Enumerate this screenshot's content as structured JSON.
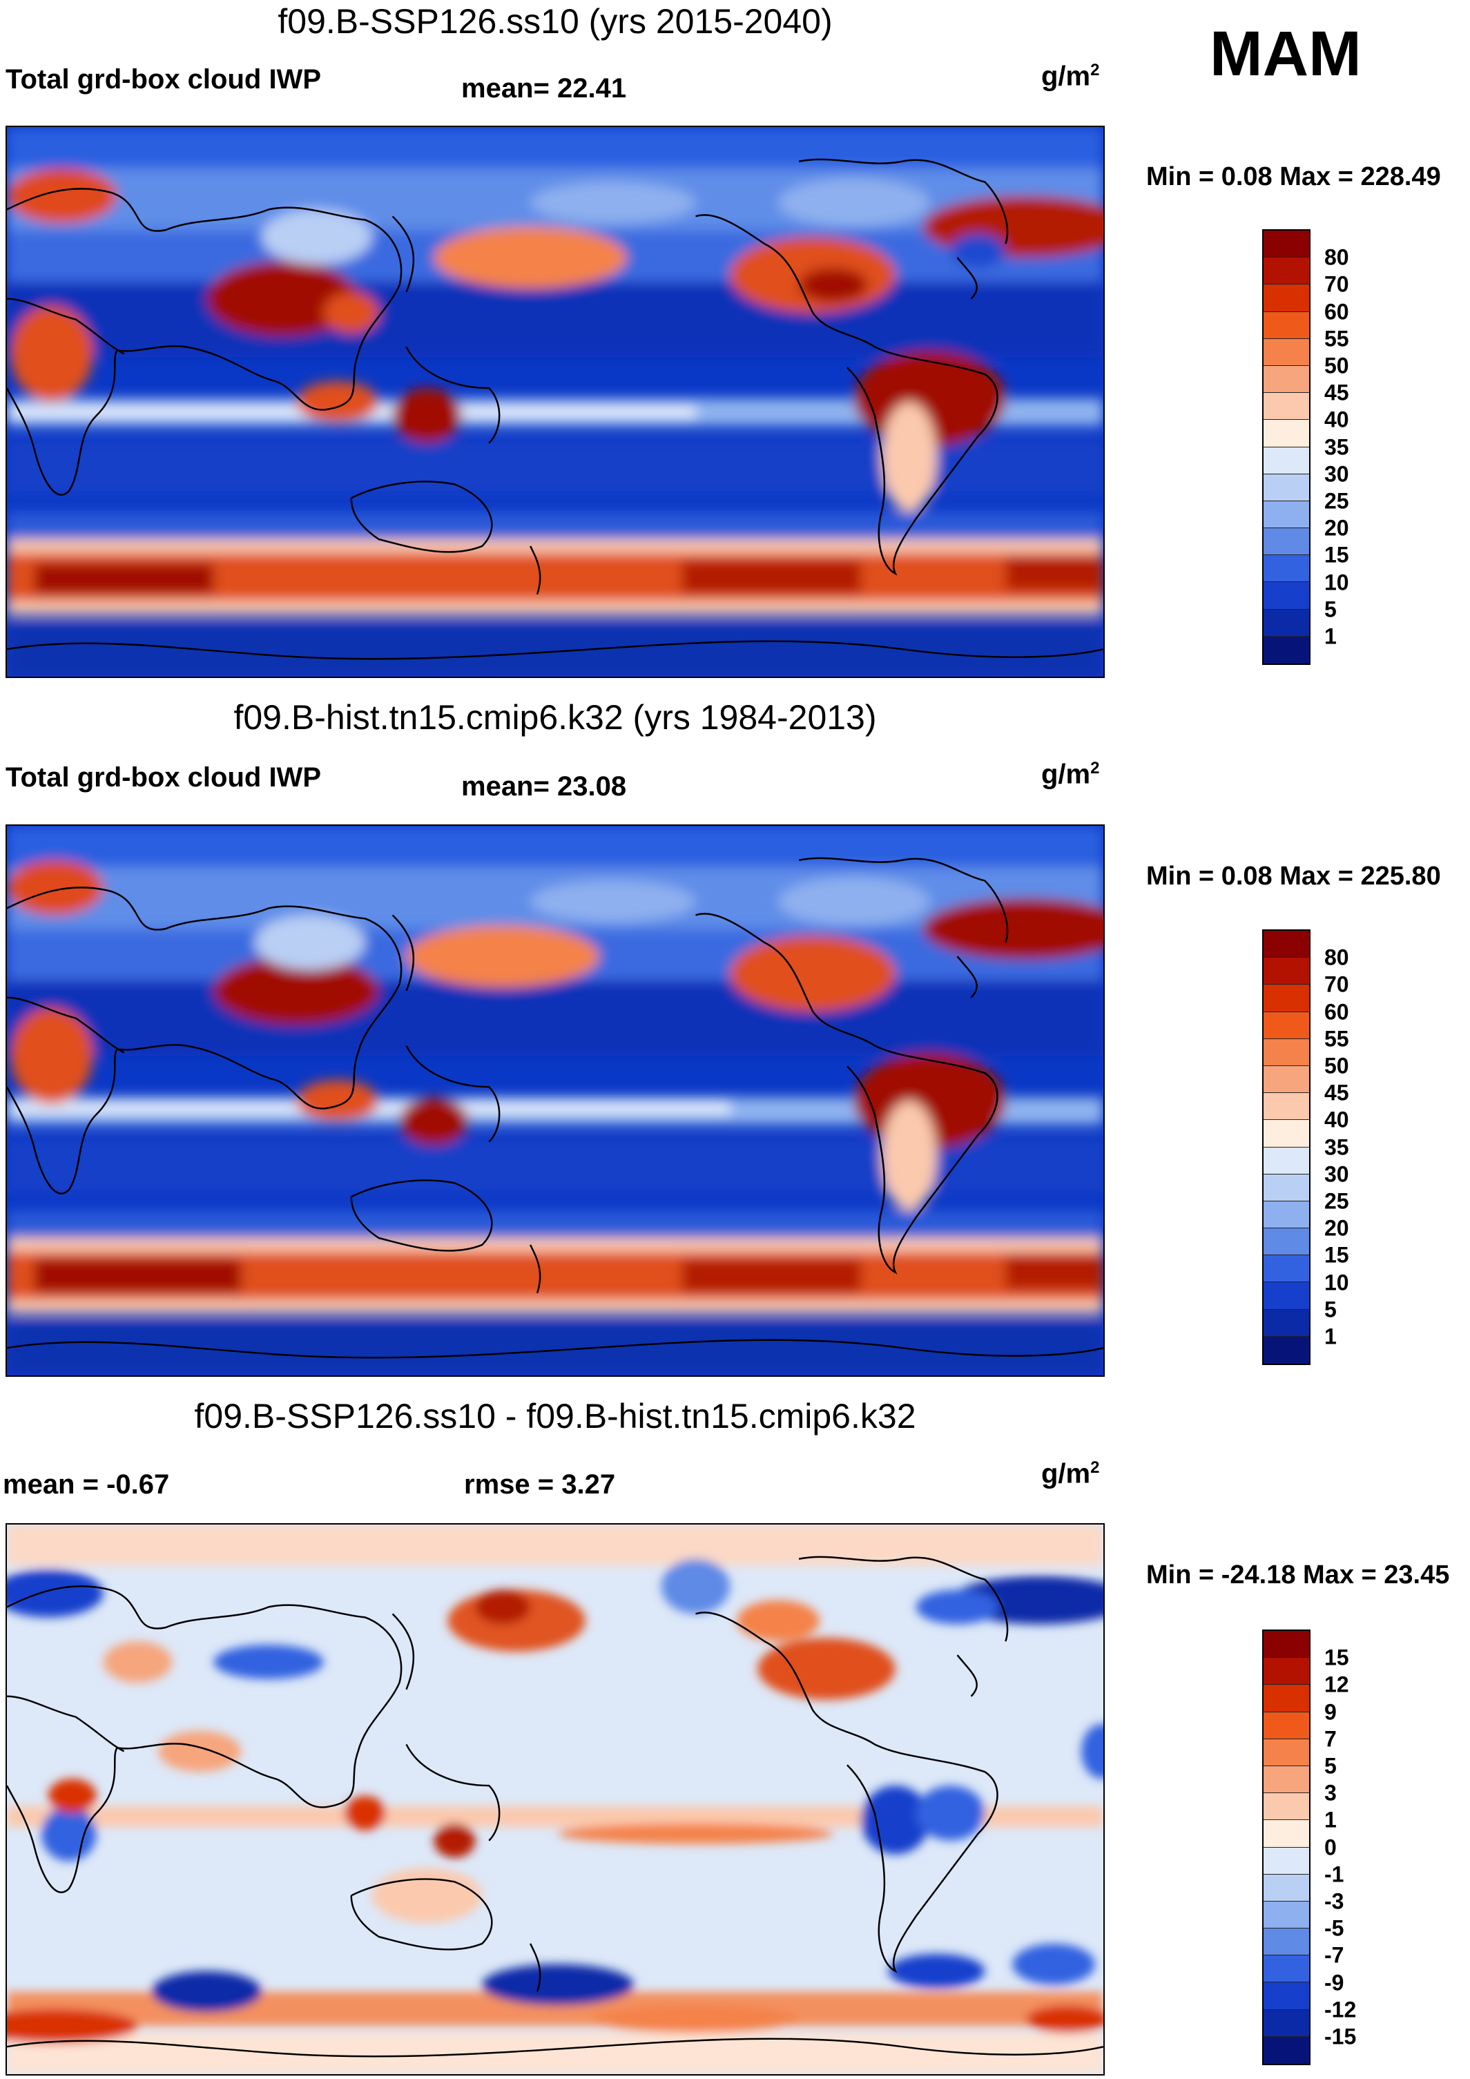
{
  "season": "MAM",
  "unit_base": "g/m",
  "unit_exp": "2",
  "panels": [
    {
      "title": "f09.B-SSP126.ss10 (yrs 2015-2040)",
      "left_label": "Total grd-box cloud IWP",
      "stat_label": "mean=  22.41",
      "minmax": "Min =   0.08 Max = 228.49"
    },
    {
      "title": "f09.B-hist.tn15.cmip6.k32 (yrs 1984-2013)",
      "left_label": "Total grd-box cloud IWP",
      "stat_label": "mean=  23.08",
      "minmax": "Min =   0.08 Max = 225.80"
    },
    {
      "title": "f09.B-SSP126.ss10 - f09.B-hist.tn15.cmip6.k32",
      "left_label": "mean =  -0.67",
      "stat_label": "rmse =    3.27",
      "minmax": "Min = -24.18 Max =  23.45"
    }
  ],
  "colorbar_abs": {
    "labels": [
      "80",
      "70",
      "60",
      "55",
      "50",
      "45",
      "40",
      "35",
      "30",
      "25",
      "20",
      "15",
      "10",
      "5",
      "1"
    ],
    "colors": [
      "#8b0000",
      "#b31200",
      "#d93000",
      "#ef5a1a",
      "#f4824a",
      "#f6a57d",
      "#fbc9ad",
      "#fdeedf",
      "#dde8f8",
      "#b9cff4",
      "#8fb0ef",
      "#5f8ae6",
      "#3362e0",
      "#1640cc",
      "#0a2aa8",
      "#06147a"
    ]
  },
  "colorbar_diff": {
    "labels": [
      "15",
      "12",
      "9",
      "7",
      "5",
      "3",
      "1",
      "0",
      "-1",
      "-3",
      "-5",
      "-7",
      "-9",
      "-12",
      "-15"
    ],
    "colors": [
      "#8b0000",
      "#b31200",
      "#d93000",
      "#ef5a1a",
      "#f4824a",
      "#f6a57d",
      "#fbc9ad",
      "#fdeedf",
      "#dde8f8",
      "#b9cff4",
      "#8fb0ef",
      "#5f8ae6",
      "#3362e0",
      "#1640cc",
      "#0a2aa8",
      "#06147a"
    ]
  }
}
